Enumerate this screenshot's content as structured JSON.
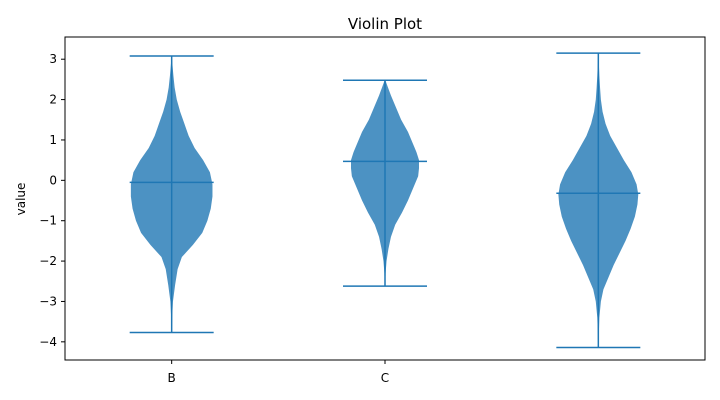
{
  "chart_data": {
    "type": "violin",
    "title": "Violin Plot",
    "xlabel": "",
    "ylabel": "value",
    "ylim": [
      -4.45,
      3.55
    ],
    "yticks": [
      3,
      2,
      1,
      0,
      -1,
      -2,
      -3,
      -4
    ],
    "ytick_labels": [
      "3",
      "2",
      "1",
      "0",
      "−1",
      "−2",
      "−3",
      "−4"
    ],
    "xlim": [
      0.5,
      3.5
    ],
    "xticks": [
      1,
      2
    ],
    "xtick_labels": [
      "B",
      "C"
    ],
    "grid": false,
    "fill_color": "#1f77b4",
    "fill_opacity": 0.8,
    "line_color": "#1f77b4",
    "violins": [
      {
        "position": 1,
        "min": -3.77,
        "max": 3.08,
        "median": -0.05,
        "profile": [
          [
            -3.77,
            0.003
          ],
          [
            -3.4,
            0.006
          ],
          [
            -3.0,
            0.015
          ],
          [
            -2.6,
            0.04
          ],
          [
            -2.2,
            0.07
          ],
          [
            -1.9,
            0.12
          ],
          [
            -1.6,
            0.25
          ],
          [
            -1.3,
            0.36
          ],
          [
            -1.0,
            0.42
          ],
          [
            -0.7,
            0.46
          ],
          [
            -0.4,
            0.48
          ],
          [
            -0.1,
            0.48
          ],
          [
            0.2,
            0.45
          ],
          [
            0.5,
            0.37
          ],
          [
            0.8,
            0.27
          ],
          [
            1.1,
            0.2
          ],
          [
            1.4,
            0.15
          ],
          [
            1.7,
            0.1
          ],
          [
            2.0,
            0.06
          ],
          [
            2.3,
            0.035
          ],
          [
            2.6,
            0.02
          ],
          [
            2.9,
            0.008
          ],
          [
            3.08,
            0.003
          ]
        ]
      },
      {
        "position": 2,
        "min": -2.62,
        "max": 2.48,
        "median": 0.47,
        "profile": [
          [
            -2.62,
            0.003
          ],
          [
            -2.3,
            0.007
          ],
          [
            -2.0,
            0.018
          ],
          [
            -1.7,
            0.04
          ],
          [
            -1.4,
            0.07
          ],
          [
            -1.1,
            0.12
          ],
          [
            -0.8,
            0.2
          ],
          [
            -0.5,
            0.27
          ],
          [
            -0.2,
            0.33
          ],
          [
            0.1,
            0.39
          ],
          [
            0.3,
            0.4
          ],
          [
            0.5,
            0.4
          ],
          [
            0.7,
            0.37
          ],
          [
            0.9,
            0.33
          ],
          [
            1.2,
            0.27
          ],
          [
            1.5,
            0.19
          ],
          [
            1.8,
            0.13
          ],
          [
            2.1,
            0.07
          ],
          [
            2.3,
            0.035
          ],
          [
            2.48,
            0.004
          ]
        ]
      },
      {
        "position": 3,
        "min": -4.14,
        "max": 3.15,
        "median": -0.32,
        "profile": [
          [
            -4.14,
            0.003
          ],
          [
            -3.8,
            0.006
          ],
          [
            -3.4,
            0.012
          ],
          [
            -3.0,
            0.03
          ],
          [
            -2.7,
            0.06
          ],
          [
            -2.4,
            0.12
          ],
          [
            -2.1,
            0.18
          ],
          [
            -1.8,
            0.25
          ],
          [
            -1.5,
            0.32
          ],
          [
            -1.2,
            0.38
          ],
          [
            -0.9,
            0.43
          ],
          [
            -0.6,
            0.46
          ],
          [
            -0.35,
            0.47
          ],
          [
            -0.1,
            0.45
          ],
          [
            0.2,
            0.39
          ],
          [
            0.5,
            0.3
          ],
          [
            0.8,
            0.22
          ],
          [
            1.1,
            0.14
          ],
          [
            1.4,
            0.085
          ],
          [
            1.7,
            0.05
          ],
          [
            2.0,
            0.03
          ],
          [
            2.3,
            0.02
          ],
          [
            2.6,
            0.012
          ],
          [
            2.9,
            0.006
          ],
          [
            3.15,
            0.003
          ]
        ]
      }
    ]
  }
}
